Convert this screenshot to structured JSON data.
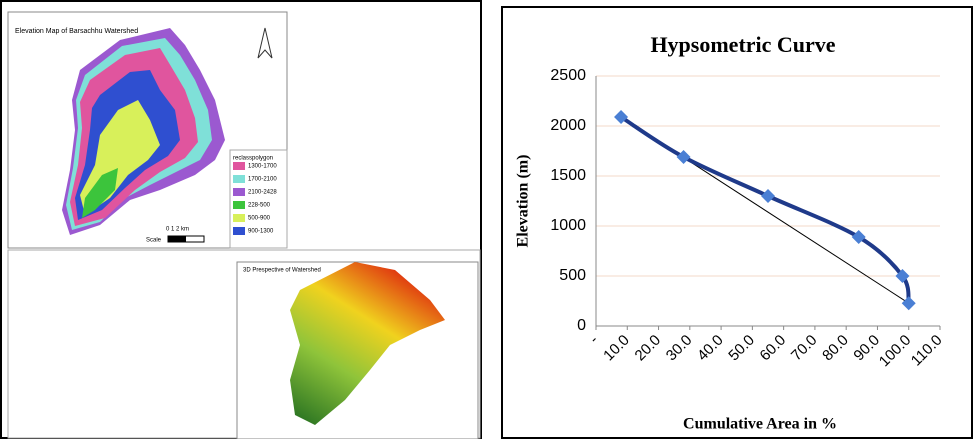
{
  "maps": {
    "elevation_map": {
      "title": "Elevation Map of Barsachhu Watershed",
      "legend_title": "reclasspolygon",
      "legend": [
        {
          "label": "1300-1700",
          "color": "#e0559e"
        },
        {
          "label": "1700-2100",
          "color": "#7fe0d8"
        },
        {
          "label": "2100-2428",
          "color": "#9b59d0"
        },
        {
          "label": "228-500",
          "color": "#3cc43c"
        },
        {
          "label": "500-900",
          "color": "#d8f05a"
        },
        {
          "label": "900-1300",
          "color": "#2f4fd0"
        }
      ],
      "scale_numbers": "0     1     2 km",
      "scale_label": "Scale"
    },
    "perspective": {
      "title": "3D Prespective of Watershed"
    }
  },
  "chart_data": {
    "type": "line",
    "title": "Hypsometric Curve",
    "x_label": "Cumulative Area in %",
    "y_label": "Elevation (m)",
    "x": [
      8,
      28,
      55,
      84,
      98,
      100
    ],
    "values": [
      2090,
      1690,
      1300,
      890,
      500,
      228
    ],
    "color": "#1f3a8a",
    "marker_color": "#4a7fd4",
    "xlim": [
      0,
      110
    ],
    "xticks": [
      {
        "value": 0,
        "label": "-"
      },
      {
        "value": 10,
        "label": "10.0"
      },
      {
        "value": 20,
        "label": "20.0"
      },
      {
        "value": 30,
        "label": "30.0"
      },
      {
        "value": 40,
        "label": "40.0"
      },
      {
        "value": 50,
        "label": "50.0"
      },
      {
        "value": 60,
        "label": "60.0"
      },
      {
        "value": 70,
        "label": "70.0"
      },
      {
        "value": 80,
        "label": "80.0"
      },
      {
        "value": 90,
        "label": "90.0"
      },
      {
        "value": 100,
        "label": "100.0"
      },
      {
        "value": 110,
        "label": "110.0"
      }
    ],
    "ylim": [
      0,
      2500
    ],
    "yticks": [
      0,
      500,
      1000,
      1500,
      2000,
      2500
    ],
    "grid": true
  }
}
